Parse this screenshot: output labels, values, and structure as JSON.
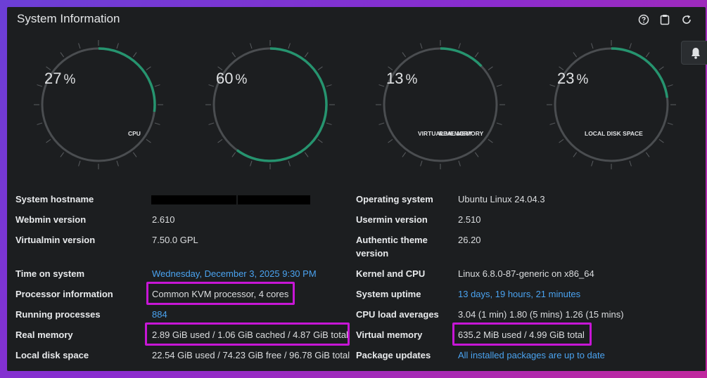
{
  "panel": {
    "title": "System Information"
  },
  "toolbar": {
    "icons": [
      "help-icon",
      "clipboard-icon",
      "refresh-icon"
    ]
  },
  "colors": {
    "accent": "#26946f",
    "track": "#4a4d50",
    "link": "#4aa3f0",
    "highlight": "#c716d6"
  },
  "gauges": [
    {
      "value": 27,
      "unit": "%",
      "label": "CPU"
    },
    {
      "value": 60,
      "unit": "%",
      "label": "REAL MEMORY"
    },
    {
      "value": 13,
      "unit": "%",
      "label": "VIRTUAL MEMORY"
    },
    {
      "value": 23,
      "unit": "%",
      "label": "LOCAL DISK SPACE"
    }
  ],
  "left": [
    {
      "label": "System hostname",
      "value": ""
    },
    {
      "label": "Webmin version",
      "value": "2.610"
    },
    {
      "label": "Virtualmin version",
      "value": "7.50.0 GPL"
    },
    {
      "label": "Time on system",
      "value": "Wednesday, December 3, 2025 9:30 PM"
    },
    {
      "label": "Processor information",
      "value": "Common KVM processor, 4 cores"
    },
    {
      "label": "Running processes",
      "value": "884"
    },
    {
      "label": "Real memory",
      "value": "2.89 GiB used / 1.06 GiB cached / 4.87 GiB total"
    },
    {
      "label": "Local disk space",
      "value": "22.54 GiB used / 74.23 GiB free / 96.78 GiB total"
    }
  ],
  "right": [
    {
      "label": "Operating system",
      "value": "Ubuntu Linux 24.04.3"
    },
    {
      "label": "Usermin version",
      "value": "2.510"
    },
    {
      "label": "Authentic theme version",
      "value": "26.20"
    },
    {
      "label": "Kernel and CPU",
      "value": "Linux 6.8.0-87-generic on x86_64"
    },
    {
      "label": "System uptime",
      "value": "13 days, 19 hours, 21 minutes"
    },
    {
      "label": "CPU load averages",
      "value": "3.04 (1 min) 1.80 (5 mins) 1.26 (15 mins)"
    },
    {
      "label": "Virtual memory",
      "value": "635.2 MiB used / 4.99 GiB total"
    },
    {
      "label": "Package updates",
      "value": "All installed packages are up to date"
    }
  ]
}
